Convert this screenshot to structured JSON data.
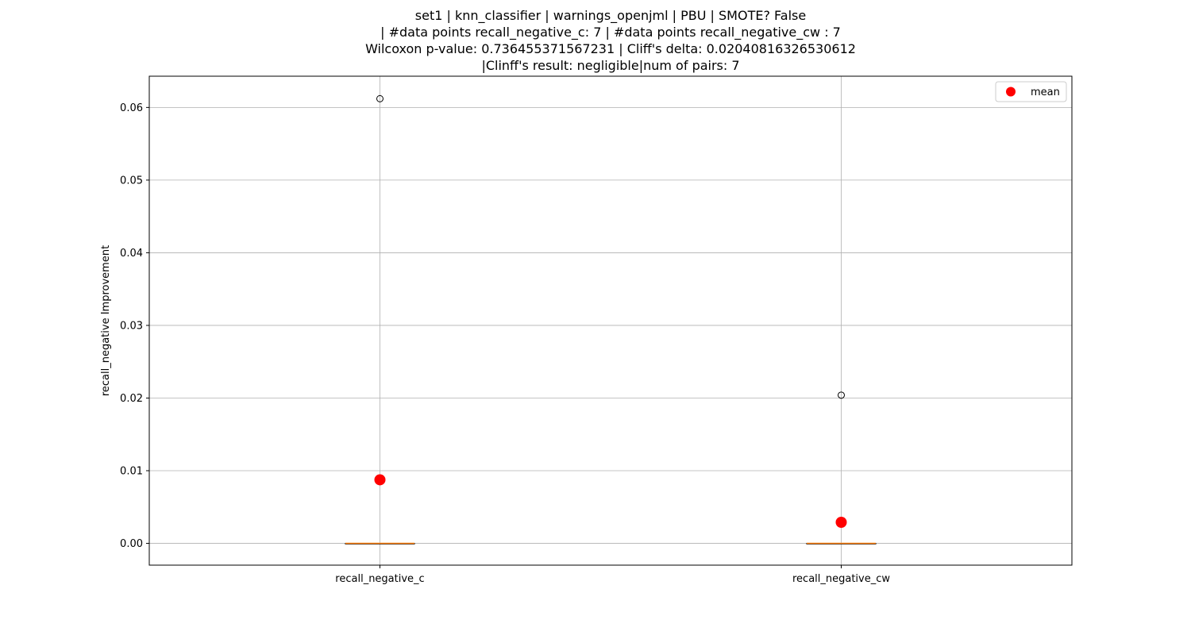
{
  "chart_data": {
    "type": "box",
    "title_lines": [
      "set1 | knn_classifier | warnings_openjml | PBU | SMOTE? False",
      "| #data points recall_negative_c: 7 | #data points recall_negative_cw : 7",
      "Wilcoxon p-value: 0.736455371567231 | Cliff's delta: 0.02040816326530612",
      "|Clinff's result: negligible|num of pairs: 7"
    ],
    "xlabel": "",
    "ylabel": "recall_negative Improvement",
    "ylim": [
      -0.003,
      0.0643
    ],
    "yticks": [
      0.0,
      0.01,
      0.02,
      0.03,
      0.04,
      0.05,
      0.06
    ],
    "ytick_labels": [
      "0.00",
      "0.01",
      "0.02",
      "0.03",
      "0.04",
      "0.05",
      "0.06"
    ],
    "categories": [
      "recall_negative_c",
      "recall_negative_cw"
    ],
    "grid": true,
    "legend": {
      "entries": [
        "mean"
      ],
      "placement": "top-right"
    },
    "colors": {
      "mean": "#ff0000",
      "median": "#ff7f0e",
      "box": "#000000",
      "grid": "#b0b0b0"
    },
    "boxes": [
      {
        "name": "recall_negative_c",
        "q1": 0.0,
        "median": 0.0,
        "q3": 0.0,
        "whisker_low": 0.0,
        "whisker_high": 0.0,
        "outliers": [
          0.0612
        ],
        "mean": 0.00875
      },
      {
        "name": "recall_negative_cw",
        "q1": 0.0,
        "median": 0.0,
        "q3": 0.0,
        "whisker_low": 0.0,
        "whisker_high": 0.0,
        "outliers": [
          0.0204
        ],
        "mean": 0.0029
      }
    ]
  }
}
